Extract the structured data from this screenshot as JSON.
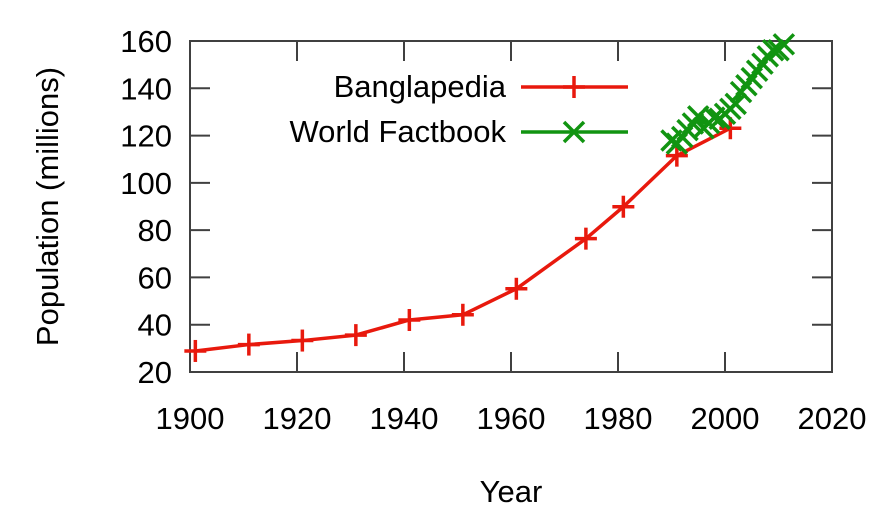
{
  "figure": {
    "background": "#ffffff",
    "text_color": "#000000",
    "axis_color": "#404040"
  },
  "chart_data": {
    "type": "line",
    "title": "",
    "xlabel": "Year",
    "ylabel": "Population (millions)",
    "xlim": [
      1900,
      2020
    ],
    "ylim": [
      20,
      160
    ],
    "xticks": [
      1900,
      1920,
      1940,
      1960,
      1980,
      2000,
      2020
    ],
    "yticks": [
      20,
      40,
      60,
      80,
      100,
      120,
      140,
      160
    ],
    "grid": false,
    "legend_position": "inside-top-center",
    "series": [
      {
        "name": "Banglapedia",
        "color": "#e8190d",
        "marker": "plus",
        "x": [
          1901,
          1911,
          1921,
          1931,
          1941,
          1951,
          1961,
          1974,
          1981,
          1991,
          2001
        ],
        "y": [
          28.9,
          31.6,
          33.3,
          35.6,
          42.0,
          44.2,
          55.2,
          76.4,
          89.9,
          111.5,
          123.1
        ]
      },
      {
        "name": "World Factbook",
        "color": "#119411",
        "marker": "x",
        "x": [
          1990,
          1991,
          1992,
          1993,
          1994,
          1995,
          1996,
          1997,
          1998,
          1999,
          2000,
          2001,
          2002,
          2003,
          2004,
          2005,
          2006,
          2007,
          2008,
          2009,
          2010,
          2011
        ],
        "y": [
          117.9,
          116.6,
          119.4,
          122.3,
          125.1,
          128.1,
          123.1,
          125.3,
          127.6,
          127.1,
          129.2,
          131.3,
          133.4,
          138.4,
          141.3,
          144.3,
          147.4,
          150.4,
          153.5,
          156.1,
          156.1,
          158.6
        ]
      }
    ]
  }
}
